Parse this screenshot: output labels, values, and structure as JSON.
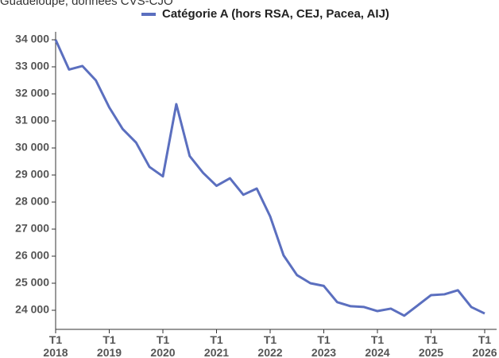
{
  "chart_data": {
    "type": "line",
    "subtitle": "Guadeloupe, données CVS-CJO",
    "categories": [
      "T1 2018",
      null,
      null,
      null,
      "T1 2019",
      null,
      null,
      null,
      "T1 2020",
      null,
      null,
      null,
      "T1 2021",
      null,
      null,
      null,
      "T1 2022",
      null,
      null,
      null,
      "T1 2023",
      null,
      null,
      null,
      "T1 2024",
      null,
      null,
      null,
      "T1 2025",
      null,
      null,
      null,
      "T1 2026"
    ],
    "series": [
      {
        "name": "Catégorie A (hors RSA, CEJ, Pacea, AIJ)",
        "color": "#5b6fbf",
        "values": [
          34000,
          32900,
          33030,
          32500,
          31500,
          30700,
          30200,
          29300,
          28950,
          31620,
          29700,
          29080,
          28600,
          28880,
          28270,
          28500,
          27470,
          26030,
          25300,
          25000,
          24900,
          24300,
          24150,
          24120,
          23970,
          24060,
          23800,
          24180,
          24560,
          24590,
          24740,
          24120,
          23880
        ]
      }
    ],
    "ylim": [
      23300,
      34300
    ],
    "yticks": [
      {
        "value": 24000,
        "label": "24 000"
      },
      {
        "value": 25000,
        "label": "25 000"
      },
      {
        "value": 26000,
        "label": "26 000"
      },
      {
        "value": 27000,
        "label": "27 000"
      },
      {
        "value": 28000,
        "label": "28 000"
      },
      {
        "value": 29000,
        "label": "29 000"
      },
      {
        "value": 30000,
        "label": "30 000"
      },
      {
        "value": 31000,
        "label": "31 000"
      },
      {
        "value": 32000,
        "label": "32 000"
      },
      {
        "value": 33000,
        "label": "33 000"
      },
      {
        "value": 34000,
        "label": "34 000"
      }
    ],
    "grid": false,
    "legend": "top"
  }
}
